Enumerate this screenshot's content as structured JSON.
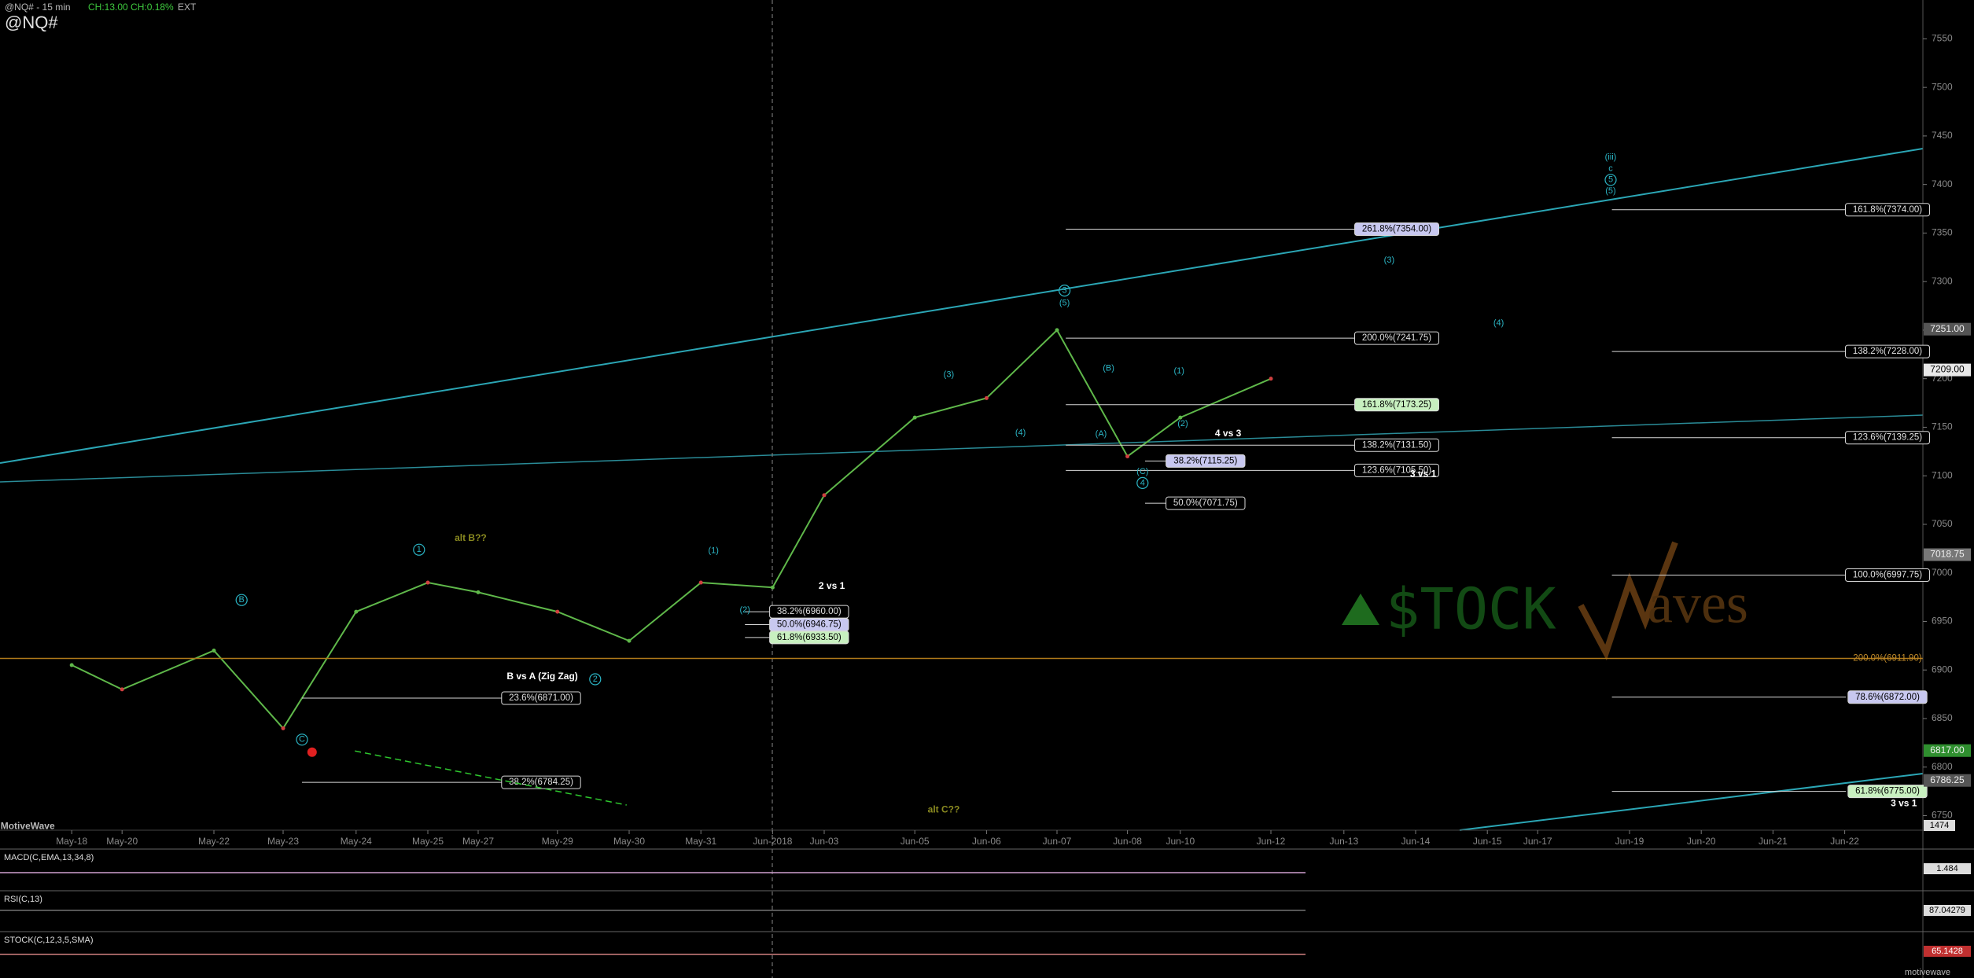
{
  "header": {
    "symbol_interval": "@NQ# - 15 min",
    "change": "CH:13.00 CH:0.18%",
    "session": "EXT",
    "symbol": "@NQ#"
  },
  "chart_data": {
    "type": "line",
    "color": "#5fb84a",
    "categories": [
      "May-18",
      "May-20",
      "May-22",
      "May-23",
      "May-24",
      "May-25",
      "May-27",
      "May-29",
      "May-30",
      "May-31",
      "Jun-2018",
      "Jun-03",
      "Jun-05",
      "Jun-06",
      "Jun-07",
      "Jun-08",
      "Jun-10",
      "Jun-12",
      "Jun-13",
      "Jun-14",
      "Jun-15",
      "Jun-17",
      "Jun-19",
      "Jun-20",
      "Jun-21",
      "Jun-22"
    ],
    "values": [
      6905,
      6880,
      6920,
      6840,
      6960,
      6990,
      6980,
      6960,
      6930,
      6990,
      6985,
      7080,
      7160,
      7180,
      7250,
      7120,
      7160,
      7200,
      null,
      null,
      null,
      null,
      null,
      null,
      null,
      null
    ],
    "ylim": [
      6735,
      7590
    ],
    "yticks": [
      6750,
      6800,
      6850,
      6900,
      6950,
      7000,
      7050,
      7100,
      7150,
      7200,
      7250,
      7300,
      7350,
      7400,
      7450,
      7500,
      7550
    ],
    "price_tags": [
      {
        "value": 7251,
        "label": "7251.00",
        "color": "#555555"
      },
      {
        "value": 7209,
        "label": "7209.00",
        "color": "#e8e8e8"
      },
      {
        "value": 7018.75,
        "label": "7018.75",
        "color": "#777777"
      },
      {
        "value": 6817,
        "label": "6817.00",
        "color": "#2f8f2f"
      },
      {
        "value": 6786.25,
        "label": "6786.25",
        "color": "#555555"
      }
    ],
    "volume_reading": "1474",
    "fib_levels": [
      {
        "value": 7374,
        "label": "161.8%(7374.00)",
        "color": "#000000"
      },
      {
        "value": 7228,
        "label": "138.2%(7228.00)",
        "color": "#000000"
      },
      {
        "value": 7139.25,
        "label": "123.6%(7139.25)",
        "color": "#000000"
      },
      {
        "value": 6997.75,
        "label": "100.0%(6997.75)",
        "color": "#000000"
      },
      {
        "value": 6911.9,
        "label": "200.0%(6911.90)",
        "color": "#b07a1a"
      },
      {
        "value": 6872,
        "label": "78.6%(6872.00)",
        "color": "#c8c8f0"
      },
      {
        "value": 6775,
        "label": "61.8%(6775.00)",
        "color": "#c8f0c0"
      },
      {
        "value": 7354,
        "label": "261.8%(7354.00)",
        "color": "#c8c8f0"
      },
      {
        "value": 7241.75,
        "label": "200.0%(7241.75)",
        "color": "#000000"
      },
      {
        "value": 7173.25,
        "label": "161.8%(7173.25)",
        "color": "#c8f0c0"
      },
      {
        "value": 7131.5,
        "label": "138.2%(7131.50)",
        "color": "#000000"
      },
      {
        "value": 7105.5,
        "label": "123.6%(7105.50)",
        "color": "#000000"
      },
      {
        "value": 7071.75,
        "label": "50.0%(7071.75)",
        "color": "#000000"
      },
      {
        "value": 7115.25,
        "label": "38.2%(7115.25)",
        "color": "#c8c8f0"
      },
      {
        "value": 6960,
        "label": "38.2%(6960.00)",
        "color": "#000000"
      },
      {
        "value": 6946.75,
        "label": "50.0%(6946.75)",
        "color": "#c8c8f0"
      },
      {
        "value": 6933.5,
        "label": "61.8%(6933.50)",
        "color": "#c8f0c0"
      },
      {
        "value": 6871,
        "label": "23.6%(6871.00)",
        "color": "#000000"
      },
      {
        "value": 6784.25,
        "label": "38.2%(6784.25)",
        "color": "#000000"
      }
    ],
    "notes": [
      "2 vs 1",
      "B vs A (Zig Zag)",
      "4 vs 3",
      "3 vs 1",
      "3 vs 1",
      "alt B??",
      "alt C??",
      "MotiveWave"
    ],
    "wave_labels": [
      "B",
      "1",
      "2",
      "C",
      "(1)",
      "(2)",
      "(3)",
      "(4)",
      "(5)",
      "3",
      "(B)",
      "(A)",
      "(C)",
      "4",
      "(1)",
      "(2)",
      "(3)",
      "(4)",
      "(iii)",
      "c",
      "5",
      "(5)"
    ]
  },
  "indicators": [
    {
      "label": "MACD(C,EMA,13,34,8)",
      "reading": "1.484"
    },
    {
      "label": "RSI(C,13)",
      "reading": "87.04279"
    },
    {
      "label": "STOCK(C,12,3,5,SMA)",
      "reading": "65.1428"
    }
  ],
  "watermark": {
    "left": "$TOCK",
    "right": "aves"
  },
  "footer": "motivewave"
}
